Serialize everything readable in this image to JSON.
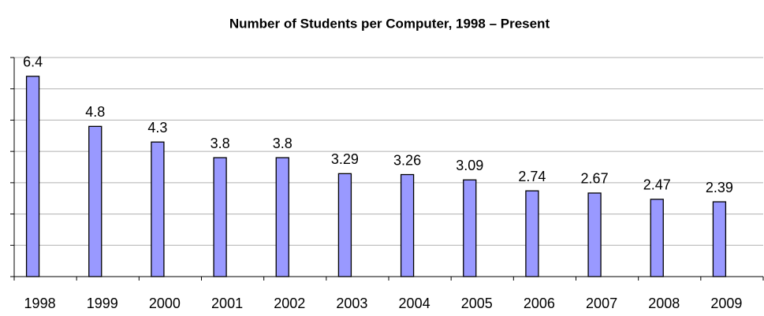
{
  "chart_data": {
    "type": "bar",
    "title": "Number of Students per Computer, 1998 – Present",
    "categories": [
      "1998",
      "1999",
      "2000",
      "2001",
      "2002",
      "2003",
      "2004",
      "2005",
      "2006",
      "2007",
      "2008",
      "2009"
    ],
    "values": [
      6.4,
      4.8,
      4.3,
      3.8,
      3.8,
      3.29,
      3.26,
      3.09,
      2.74,
      2.67,
      2.47,
      2.39
    ],
    "color": "#9999ff",
    "ylim": [
      0,
      7
    ],
    "yticks": [
      0,
      1,
      2,
      3,
      4,
      5,
      6,
      7
    ],
    "grid": true
  }
}
